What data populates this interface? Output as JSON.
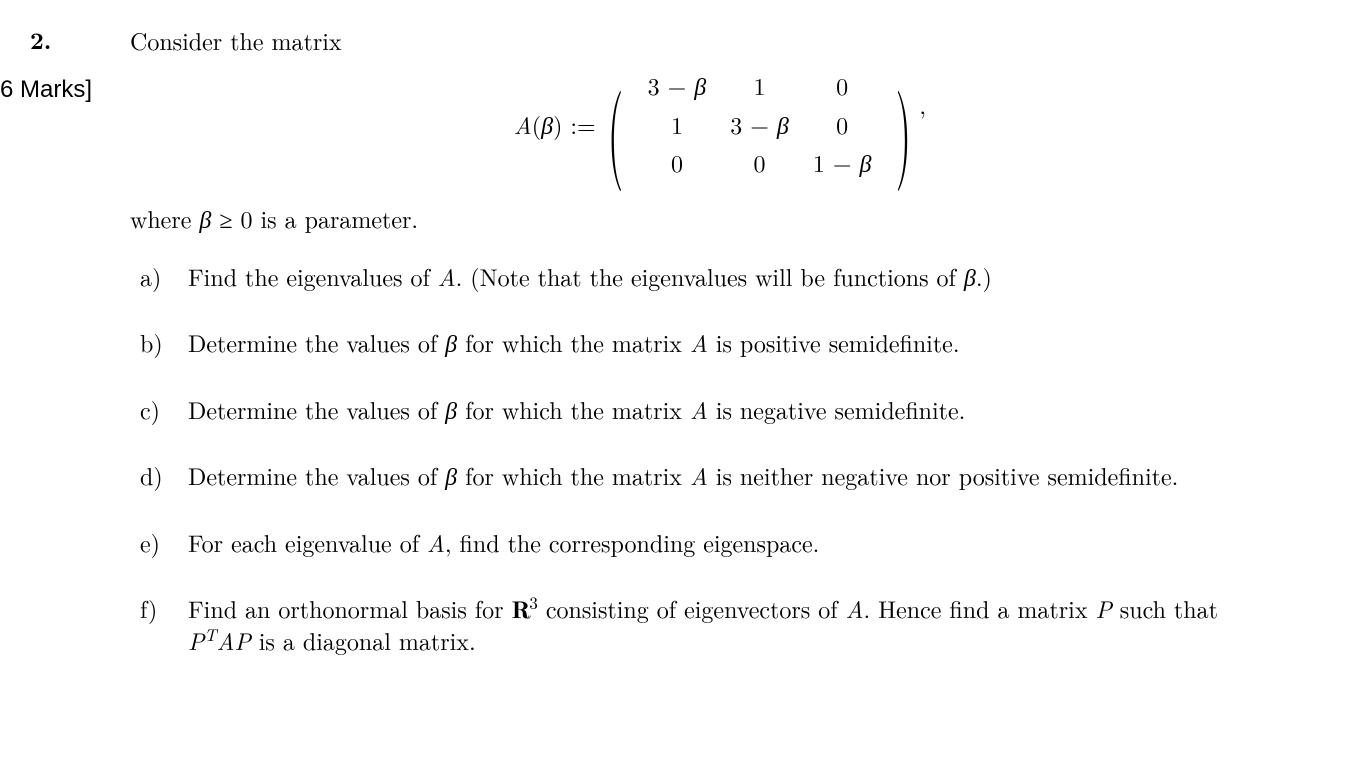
{
  "question_number": "2.",
  "marks_label": "6 Marks]",
  "intro_text": "Consider the matrix",
  "matrix_lhs": "A(β) :=",
  "matrix_rows": [
    [
      "3 − β",
      "1",
      "0"
    ],
    [
      "1",
      "3 − β",
      "0"
    ],
    [
      "0",
      "0",
      "1 − β"
    ]
  ],
  "matrix_tail": ",",
  "param_line_prefix": "where ",
  "param_var": "β",
  "param_condition": " ≥ 0 ",
  "param_line_suffix": "is a parameter.",
  "parts": {
    "a": {
      "label": "a)",
      "segments": [
        {
          "t": "Find the eigenvalues of "
        },
        {
          "t": "A",
          "ital": true
        },
        {
          "t": ".  (Note that the eigenvalues will be functions of "
        },
        {
          "t": "β",
          "ital": true
        },
        {
          "t": ".)"
        }
      ]
    },
    "b": {
      "label": "b)",
      "segments": [
        {
          "t": "Determine the values of "
        },
        {
          "t": "β",
          "ital": true
        },
        {
          "t": " for which the matrix "
        },
        {
          "t": "A",
          "ital": true
        },
        {
          "t": " is positive semidefinite."
        }
      ]
    },
    "c": {
      "label": "c)",
      "segments": [
        {
          "t": "Determine the values of "
        },
        {
          "t": "β",
          "ital": true
        },
        {
          "t": " for which the matrix "
        },
        {
          "t": "A",
          "ital": true
        },
        {
          "t": " is negative semidefinite."
        }
      ]
    },
    "d": {
      "label": "d)",
      "segments": [
        {
          "t": "Determine the values of "
        },
        {
          "t": "β",
          "ital": true
        },
        {
          "t": " for which the matrix "
        },
        {
          "t": "A",
          "ital": true
        },
        {
          "t": " is neither negative nor positive semidefinite."
        }
      ]
    },
    "e": {
      "label": "e)",
      "segments": [
        {
          "t": "For each eigenvalue of "
        },
        {
          "t": "A",
          "ital": true
        },
        {
          "t": ", find the corresponding eigenspace."
        }
      ]
    },
    "f": {
      "label": "f)",
      "segments_html": "Find an orthonormal basis for <span class=\"dsR\">R</span><sup>3</sup> consisting of eigenvectors of <span class=\"ital\">A</span>.  Hence find a matrix <span class=\"ital\">P</span> such that <span class=\"ital\">P<sup><span class=\"upright\" style=\"font-style:italic\">T</span></sup>AP</span> is a diagonal matrix."
    }
  }
}
